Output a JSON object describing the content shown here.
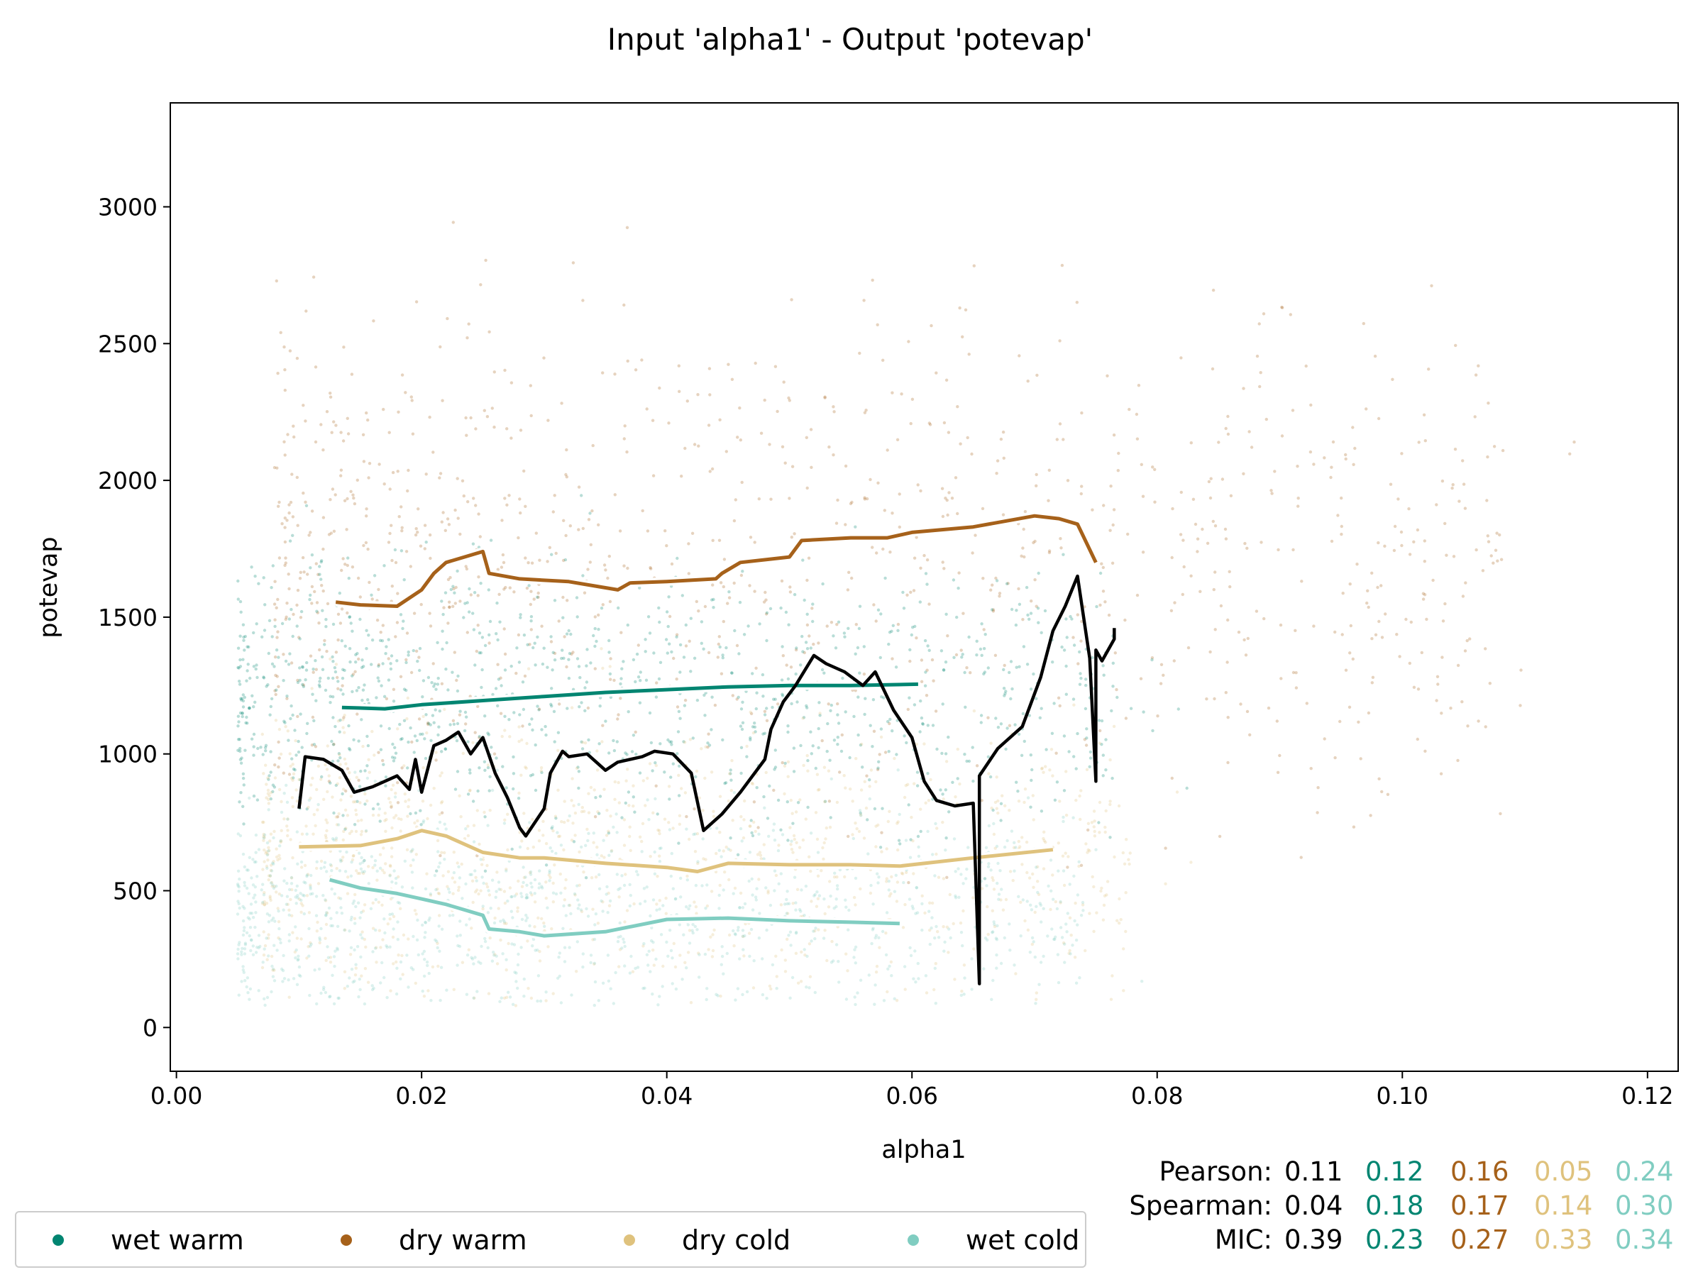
{
  "chart_data": {
    "type": "scatter",
    "title": "Input 'alpha1' - Output 'potevap'",
    "xlabel": "alpha1",
    "ylabel": "potevap",
    "xlim": [
      -0.0005,
      0.1225
    ],
    "ylim": [
      -160,
      3380
    ],
    "xticks": [
      0.0,
      0.02,
      0.04,
      0.06,
      0.08,
      0.1,
      0.12
    ],
    "xtick_labels": [
      "0.00",
      "0.02",
      "0.04",
      "0.06",
      "0.08",
      "0.10",
      "0.12"
    ],
    "yticks": [
      0,
      500,
      1000,
      1500,
      2000,
      2500,
      3000
    ],
    "ytick_labels": [
      "0",
      "500",
      "1000",
      "1500",
      "2000",
      "2500",
      "3000"
    ],
    "grid": false,
    "colors": {
      "overall": "#000000",
      "wet warm": "#018571",
      "dry warm": "#a6611a",
      "dry cold": "#dfc27d",
      "wet cold": "#80cdc1"
    },
    "series": [
      {
        "name": "wet warm",
        "color": "#018571",
        "scatter_cloud": {
          "x_range": [
            0.005,
            0.083
          ],
          "y_center": 1200,
          "y_spread": 250
        },
        "trend_x": [
          0.0135,
          0.017,
          0.02,
          0.025,
          0.03,
          0.035,
          0.04,
          0.045,
          0.05,
          0.055,
          0.0605
        ],
        "trend_y": [
          1170,
          1165,
          1180,
          1195,
          1210,
          1225,
          1235,
          1245,
          1250,
          1250,
          1255
        ]
      },
      {
        "name": "dry warm",
        "color": "#a6611a",
        "scatter_cloud": {
          "x_range": [
            0.008,
            0.117
          ],
          "y_center": 1700,
          "y_spread": 450
        },
        "trend_x": [
          0.013,
          0.015,
          0.018,
          0.02,
          0.021,
          0.022,
          0.025,
          0.0255,
          0.028,
          0.032,
          0.036,
          0.037,
          0.04,
          0.044,
          0.0445,
          0.046,
          0.05,
          0.051,
          0.055,
          0.058,
          0.06,
          0.065,
          0.07,
          0.072,
          0.0735,
          0.075
        ],
        "trend_y": [
          1555,
          1545,
          1540,
          1600,
          1660,
          1700,
          1740,
          1660,
          1640,
          1630,
          1600,
          1625,
          1630,
          1640,
          1660,
          1700,
          1720,
          1780,
          1790,
          1790,
          1810,
          1830,
          1870,
          1860,
          1840,
          1700
        ]
      },
      {
        "name": "dry cold",
        "color": "#dfc27d",
        "scatter_cloud": {
          "x_range": [
            0.007,
            0.084
          ],
          "y_center": 640,
          "y_spread": 250
        },
        "trend_x": [
          0.01,
          0.015,
          0.018,
          0.02,
          0.022,
          0.025,
          0.028,
          0.03,
          0.035,
          0.04,
          0.0425,
          0.045,
          0.05,
          0.055,
          0.059,
          0.065,
          0.0715
        ],
        "trend_y": [
          660,
          665,
          690,
          720,
          700,
          640,
          620,
          620,
          600,
          585,
          570,
          600,
          595,
          595,
          590,
          620,
          650
        ]
      },
      {
        "name": "wet cold",
        "color": "#80cdc1",
        "scatter_cloud": {
          "x_range": [
            0.005,
            0.08
          ],
          "y_center": 430,
          "y_spread": 190
        },
        "trend_x": [
          0.0125,
          0.015,
          0.018,
          0.02,
          0.022,
          0.025,
          0.0255,
          0.028,
          0.03,
          0.035,
          0.04,
          0.045,
          0.05,
          0.055,
          0.059
        ],
        "trend_y": [
          540,
          510,
          490,
          470,
          450,
          410,
          360,
          350,
          335,
          350,
          395,
          400,
          390,
          385,
          380
        ]
      }
    ],
    "overall_trend": {
      "color": "#000000",
      "x": [
        0.01,
        0.0105,
        0.012,
        0.0135,
        0.0145,
        0.016,
        0.018,
        0.019,
        0.0195,
        0.02,
        0.021,
        0.022,
        0.023,
        0.024,
        0.025,
        0.026,
        0.027,
        0.028,
        0.0285,
        0.03,
        0.0305,
        0.0315,
        0.032,
        0.0335,
        0.035,
        0.036,
        0.038,
        0.039,
        0.0405,
        0.042,
        0.043,
        0.0445,
        0.046,
        0.048,
        0.0485,
        0.0495,
        0.0505,
        0.052,
        0.053,
        0.0545,
        0.056,
        0.057,
        0.0585,
        0.06,
        0.061,
        0.062,
        0.0635,
        0.065,
        0.0655,
        0.0655,
        0.0655,
        0.067,
        0.069,
        0.0705,
        0.0715,
        0.0725,
        0.0735,
        0.0745,
        0.075,
        0.075,
        0.0755,
        0.0765,
        0.0765
      ],
      "y": [
        800,
        990,
        980,
        940,
        860,
        880,
        920,
        870,
        980,
        860,
        1030,
        1050,
        1080,
        1000,
        1060,
        930,
        840,
        730,
        700,
        800,
        930,
        1010,
        990,
        1000,
        940,
        970,
        990,
        1010,
        1000,
        930,
        720,
        780,
        860,
        980,
        1090,
        1190,
        1250,
        1360,
        1330,
        1300,
        1250,
        1300,
        1160,
        1060,
        900,
        830,
        810,
        820,
        160,
        820,
        920,
        1020,
        1100,
        1280,
        1450,
        1540,
        1650,
        1350,
        900,
        1380,
        1340,
        1420,
        1460
      ]
    },
    "stats": {
      "rows": [
        {
          "label": "Pearson:",
          "values": [
            "0.11",
            "0.12",
            "0.16",
            "0.05",
            "0.24"
          ]
        },
        {
          "label": "Spearman:",
          "values": [
            "0.04",
            "0.18",
            "0.17",
            "0.14",
            "0.30"
          ]
        },
        {
          "label": "MIC:",
          "values": [
            "0.39",
            "0.23",
            "0.27",
            "0.33",
            "0.34"
          ]
        }
      ],
      "column_colors": [
        "#000000",
        "#018571",
        "#a6611a",
        "#dfc27d",
        "#80cdc1"
      ]
    },
    "legend": {
      "placement": "bottom-left",
      "entries": [
        "wet warm",
        "dry warm",
        "dry cold",
        "wet cold"
      ]
    }
  }
}
